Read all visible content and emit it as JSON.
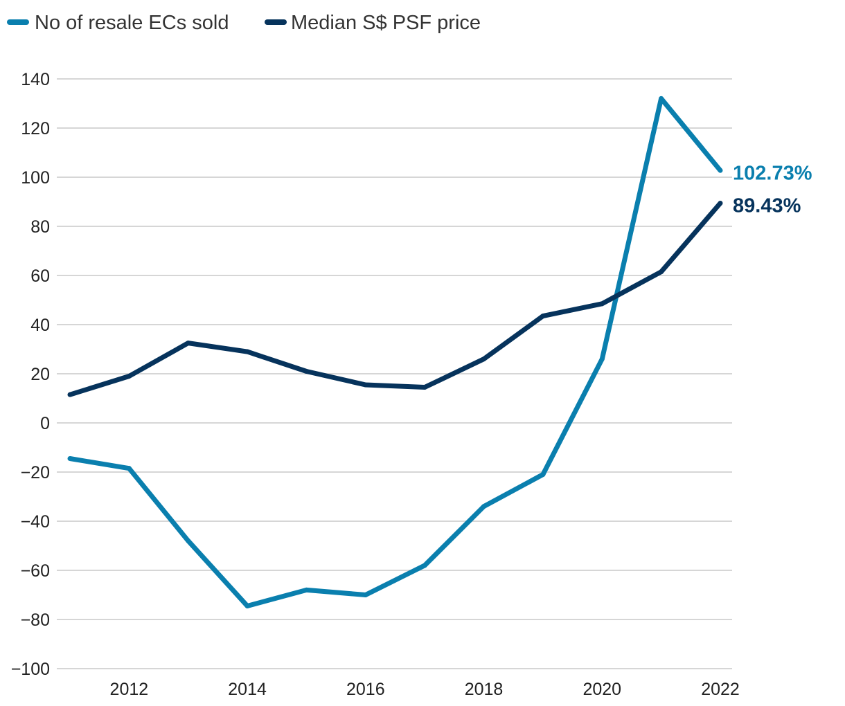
{
  "chart_data": {
    "type": "line",
    "title": "",
    "xlabel": "",
    "ylabel": "",
    "x": [
      2011,
      2012,
      2013,
      2014,
      2015,
      2016,
      2017,
      2018,
      2019,
      2020,
      2021,
      2022
    ],
    "x_ticks": [
      2012,
      2014,
      2016,
      2018,
      2020,
      2022
    ],
    "x_tick_labels": [
      "2012",
      "2014",
      "2016",
      "2018",
      "2020",
      "2022"
    ],
    "xlim": [
      2011,
      2022.2
    ],
    "ylim": [
      -100,
      140
    ],
    "y_ticks": [
      140,
      120,
      100,
      80,
      60,
      40,
      20,
      0,
      -20,
      -40,
      -60,
      -80,
      -100
    ],
    "y_tick_labels": [
      "140",
      "120",
      "100",
      "80",
      "60",
      "40",
      "20",
      "0",
      "−20",
      "−40",
      "−60",
      "−80",
      "−100"
    ],
    "grid": true,
    "legend_position": "top-left",
    "series": [
      {
        "name": "No of resale ECs sold",
        "color": "#0a7fae",
        "values": [
          -14.5,
          -18.5,
          -48,
          -74.5,
          -68,
          -70,
          -58,
          -34,
          -21,
          26,
          132,
          102.73
        ],
        "end_label": "102.73%"
      },
      {
        "name": "Median S$ PSF price",
        "color": "#06335c",
        "values": [
          11.5,
          19,
          32.5,
          29,
          21,
          15.5,
          14.5,
          26,
          43.5,
          48.5,
          61.5,
          89.43
        ],
        "end_label": "89.43%"
      }
    ]
  }
}
